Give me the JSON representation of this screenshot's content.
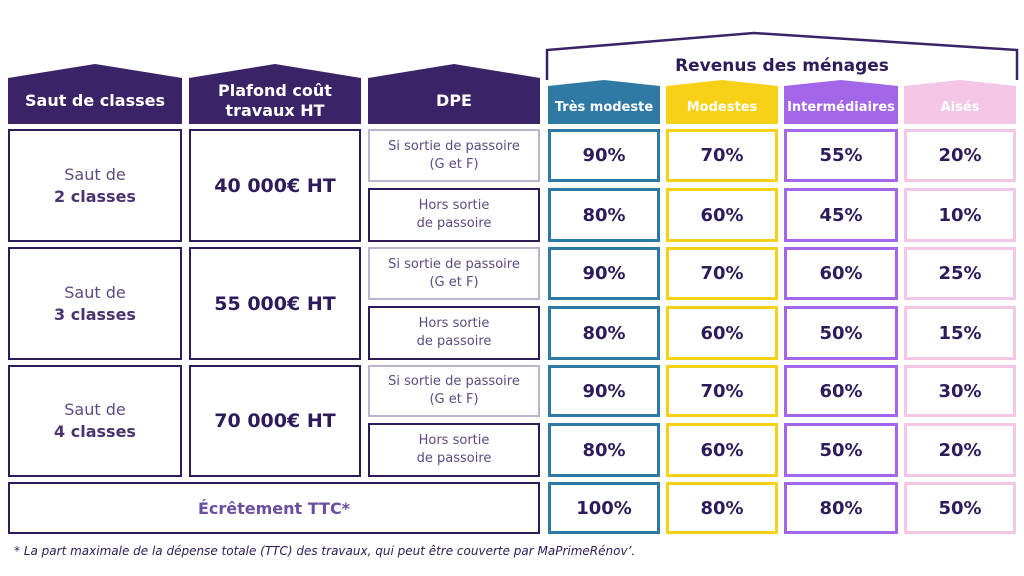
{
  "header": {
    "saut_label": "Saut de classes",
    "plafond_label_line1": "Plafond coût",
    "plafond_label_line2": "travaux HT",
    "dpe_label": "DPE",
    "revenus_title": "Revenus des ménages",
    "income_categories": [
      "Très modeste",
      "Modestes",
      "Intermédiaires",
      "Aisés"
    ]
  },
  "colors": {
    "header_dark": "#3a2467",
    "tres_modeste": "#2f7aa5",
    "modestes": "#f7d117",
    "intermediaires": "#a466e8",
    "aises": "#f3c6e6"
  },
  "groups": [
    {
      "saut_line1": "Saut de",
      "saut_line2": "2 classes",
      "plafond": "40 000€ HT",
      "rows": [
        {
          "dpe_line1": "Si sortie de passoire",
          "dpe_line2": "(G et F)",
          "values": [
            "90%",
            "70%",
            "55%",
            "20%"
          ]
        },
        {
          "dpe_line1": "Hors sortie",
          "dpe_line2": "de passoire",
          "values": [
            "80%",
            "60%",
            "45%",
            "10%"
          ]
        }
      ]
    },
    {
      "saut_line1": "Saut de",
      "saut_line2": "3 classes",
      "plafond": "55 000€ HT",
      "rows": [
        {
          "dpe_line1": "Si sortie de passoire",
          "dpe_line2": "(G et F)",
          "values": [
            "90%",
            "70%",
            "60%",
            "25%"
          ]
        },
        {
          "dpe_line1": "Hors sortie",
          "dpe_line2": "de passoire",
          "values": [
            "80%",
            "60%",
            "50%",
            "15%"
          ]
        }
      ]
    },
    {
      "saut_line1": "Saut de",
      "saut_line2": "4 classes",
      "plafond": "70 000€ HT",
      "rows": [
        {
          "dpe_line1": "Si sortie de passoire",
          "dpe_line2": "(G et F)",
          "values": [
            "90%",
            "70%",
            "60%",
            "30%"
          ]
        },
        {
          "dpe_line1": "Hors sortie",
          "dpe_line2": "de passoire",
          "values": [
            "80%",
            "60%",
            "50%",
            "20%"
          ]
        }
      ]
    }
  ],
  "ecretement": {
    "label": "Écrêtement TTC*",
    "values": [
      "100%",
      "80%",
      "80%",
      "50%"
    ]
  },
  "footnote": "* La part maximale de la dépense totale (TTC) des travaux, qui peut être couverte par MaPrimeRénov’."
}
